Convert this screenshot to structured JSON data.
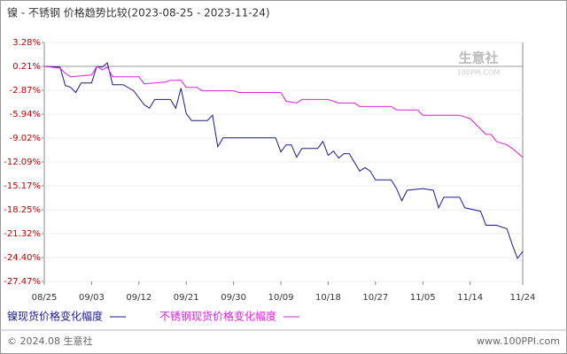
{
  "chart_data": {
    "type": "line",
    "title": "镍 - 不锈钢 价格趋势比较(2023-08-25 - 2023-11-24)",
    "watermark": [
      "生意社",
      "100PPI.COM"
    ],
    "footer_left": "© 2024.08 生意社",
    "footer_right": "www.100PPI.com",
    "xlim": [
      "08/25",
      "11/24"
    ],
    "xticks": [
      "08/25",
      "09/03",
      "09/12",
      "09/21",
      "09/30",
      "10/09",
      "10/18",
      "10/27",
      "11/05",
      "11/14",
      "11/24"
    ],
    "ylim": [
      -27.47,
      3.28
    ],
    "yticks": [
      {
        "value": 3.28,
        "label": "3.28%"
      },
      {
        "value": 0.21,
        "label": "0.21%"
      },
      {
        "value": -2.87,
        "label": "-2.87%"
      },
      {
        "value": -5.94,
        "label": "-5.94%"
      },
      {
        "value": -9.02,
        "label": "-9.02%"
      },
      {
        "value": -12.09,
        "label": "-12.09%"
      },
      {
        "value": -15.17,
        "label": "-15.17%"
      },
      {
        "value": -18.25,
        "label": "-18.25%"
      },
      {
        "value": -21.32,
        "label": "-21.32%"
      },
      {
        "value": -24.4,
        "label": "-24.40%"
      },
      {
        "value": -27.47,
        "label": "-27.47%"
      }
    ],
    "grid": true,
    "series": [
      {
        "name": "镍现货价格变化幅度",
        "color": "#1a1a8c",
        "x": [
          "08/25",
          "08/28",
          "08/29",
          "08/30",
          "08/31",
          "09/01",
          "09/03",
          "09/04",
          "09/05",
          "09/06",
          "09/07",
          "09/09",
          "09/11",
          "09/13",
          "09/14",
          "09/15",
          "09/18",
          "09/19",
          "09/20",
          "09/21",
          "09/22",
          "09/25",
          "09/26",
          "09/27",
          "09/28",
          "10/08",
          "10/09",
          "10/10",
          "10/11",
          "10/12",
          "10/13",
          "10/16",
          "10/17",
          "10/18",
          "10/19",
          "10/20",
          "10/21",
          "10/22",
          "10/24",
          "10/25",
          "10/26",
          "10/27",
          "10/30",
          "10/31",
          "11/01",
          "11/02",
          "11/05",
          "11/07",
          "11/08",
          "11/09",
          "11/12",
          "11/13",
          "11/16",
          "11/17",
          "11/19",
          "11/21",
          "11/22",
          "11/23",
          "11/24"
        ],
        "values": [
          0.21,
          0.1,
          -2.26,
          -2.49,
          -3.16,
          -1.92,
          -1.92,
          0.21,
          0.1,
          0.66,
          -2.15,
          -2.15,
          -2.94,
          -4.73,
          -5.18,
          -4.06,
          -4.06,
          -5.18,
          -2.6,
          -5.86,
          -6.76,
          -6.76,
          -6.08,
          -10.13,
          -9.0,
          -9.0,
          -10.8,
          -9.9,
          -9.9,
          -11.48,
          -10.35,
          -10.35,
          -9.45,
          -11.25,
          -10.69,
          -11.59,
          -11.03,
          -11.03,
          -13.27,
          -12.82,
          -13.27,
          -14.4,
          -14.4,
          -15.52,
          -17.09,
          -15.74,
          -15.52,
          -15.74,
          -17.99,
          -16.64,
          -16.64,
          -17.99,
          -18.44,
          -20.24,
          -20.24,
          -20.69,
          -22.71,
          -24.51,
          -23.61
        ]
      },
      {
        "name": "不锈钢现货价格变化幅度",
        "color": "#e020e0",
        "x": [
          "08/25",
          "08/28",
          "08/29",
          "08/30",
          "09/01",
          "09/03",
          "09/04",
          "09/05",
          "09/06",
          "09/07",
          "09/12",
          "09/13",
          "09/17",
          "09/18",
          "09/20",
          "09/21",
          "09/23",
          "09/24",
          "09/30",
          "10/01",
          "10/09",
          "10/10",
          "10/12",
          "10/13",
          "10/18",
          "10/20",
          "10/23",
          "10/24",
          "10/30",
          "10/31",
          "11/04",
          "11/05",
          "11/12",
          "11/14",
          "11/15",
          "11/17",
          "11/18",
          "11/19",
          "11/21",
          "11/22",
          "11/24"
        ],
        "values": [
          0.21,
          -0.02,
          -0.7,
          -1.14,
          -1.03,
          -0.91,
          0.21,
          -0.24,
          0.1,
          -1.14,
          -1.14,
          -2.04,
          -1.81,
          -1.59,
          -1.59,
          -2.49,
          -2.49,
          -2.94,
          -2.94,
          -3.16,
          -3.16,
          -4.28,
          -4.51,
          -4.06,
          -4.06,
          -4.51,
          -4.51,
          -4.96,
          -4.96,
          -5.41,
          -5.41,
          -6.08,
          -6.08,
          -6.53,
          -7.2,
          -8.55,
          -8.55,
          -9.45,
          -9.9,
          -10.35,
          -11.48
        ]
      }
    ]
  }
}
